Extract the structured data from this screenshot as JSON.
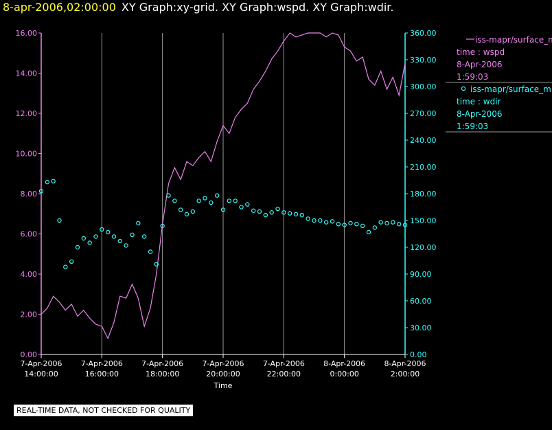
{
  "header": {
    "datetime": "8-apr-2006,02:00:00",
    "title": "XY Graph:xy-grid.  XY Graph:wspd.  XY Graph:wdir."
  },
  "notice": "REAL-TIME DATA, NOT CHECKED FOR QUALITY",
  "colors": {
    "background": "#000000",
    "wspd": "#ee82ee",
    "wdir": "#33ffff",
    "grid": "#9a9a9a",
    "axis_text": "#ffffff"
  },
  "legend": [
    {
      "series": "wspd",
      "symbol": "line",
      "name": "iss-mapr/surface_m",
      "var": "time : wspd",
      "date": "8-Apr-2006",
      "time": "1:59:03"
    },
    {
      "series": "wdir",
      "symbol": "circle",
      "name": "iss-mapr/surface_m",
      "var": "time : wdir",
      "date": "8-Apr-2006",
      "time": "1:59:03"
    }
  ],
  "chart_data": {
    "type": "line",
    "xlabel": "Time",
    "x_range_hours": [
      14,
      26
    ],
    "x_ticks": [
      {
        "hour": 14,
        "date": "7-Apr-2006",
        "time": "14:00:00"
      },
      {
        "hour": 16,
        "date": "7-Apr-2006",
        "time": "16:00:00"
      },
      {
        "hour": 18,
        "date": "7-Apr-2006",
        "time": "18:00:00"
      },
      {
        "hour": 20,
        "date": "7-Apr-2006",
        "time": "20:00:00"
      },
      {
        "hour": 22,
        "date": "7-Apr-2006",
        "time": "22:00:00"
      },
      {
        "hour": 24,
        "date": "8-Apr-2006",
        "time": "0:00:00"
      },
      {
        "hour": 26,
        "date": "8-Apr-2006",
        "time": "2:00:00"
      }
    ],
    "left_axis": {
      "series": "wspd",
      "range": [
        0,
        16
      ],
      "ticks": [
        "0.00",
        "2.00",
        "4.00",
        "6.00",
        "8.00",
        "10.00",
        "12.00",
        "14.00",
        "16.00"
      ]
    },
    "right_axis": {
      "series": "wdir",
      "range": [
        0,
        360
      ],
      "ticks": [
        "0.00",
        "30.00",
        "60.00",
        "90.00",
        "120.00",
        "150.00",
        "180.00",
        "210.00",
        "240.00",
        "270.00",
        "300.00",
        "330.00",
        "360.00"
      ]
    },
    "grid": "vertical lines at x ticks",
    "series": [
      {
        "key": "wspd",
        "style": "line",
        "axis": "left",
        "x": [
          14.0,
          14.2,
          14.4,
          14.6,
          14.8,
          15.0,
          15.2,
          15.4,
          15.6,
          15.8,
          16.0,
          16.2,
          16.4,
          16.6,
          16.8,
          17.0,
          17.2,
          17.4,
          17.6,
          17.8,
          18.0,
          18.2,
          18.4,
          18.6,
          18.8,
          19.0,
          19.2,
          19.4,
          19.6,
          19.8,
          20.0,
          20.2,
          20.4,
          20.6,
          20.8,
          21.0,
          21.2,
          21.4,
          21.6,
          21.8,
          22.0,
          22.2,
          22.4,
          22.6,
          22.8,
          23.0,
          23.2,
          23.4,
          23.6,
          23.8,
          24.0,
          24.2,
          24.4,
          24.6,
          24.8,
          25.0,
          25.2,
          25.4,
          25.6,
          25.8,
          26.0
        ],
        "y": [
          2.0,
          2.3,
          2.9,
          2.6,
          2.2,
          2.5,
          1.9,
          2.2,
          1.8,
          1.5,
          1.4,
          0.8,
          1.6,
          2.9,
          2.8,
          3.5,
          2.8,
          1.4,
          2.3,
          4.0,
          6.5,
          8.5,
          9.3,
          8.7,
          9.6,
          9.4,
          9.8,
          10.1,
          9.6,
          10.6,
          11.4,
          11.0,
          11.8,
          12.2,
          12.5,
          13.2,
          13.6,
          14.1,
          14.7,
          15.1,
          15.6,
          16.0,
          15.8,
          15.9,
          16.0,
          16.0,
          16.0,
          15.8,
          16.0,
          15.9,
          15.3,
          15.1,
          14.6,
          14.8,
          13.7,
          13.4,
          14.1,
          13.2,
          13.8,
          12.9,
          14.5
        ]
      },
      {
        "key": "wdir",
        "style": "markers",
        "axis": "right",
        "x": [
          14.0,
          14.2,
          14.4,
          14.6,
          14.8,
          15.0,
          15.2,
          15.4,
          15.6,
          15.8,
          16.0,
          16.2,
          16.4,
          16.6,
          16.8,
          17.0,
          17.2,
          17.4,
          17.6,
          17.8,
          18.0,
          18.2,
          18.4,
          18.6,
          18.8,
          19.0,
          19.2,
          19.4,
          19.6,
          19.8,
          20.0,
          20.2,
          20.4,
          20.6,
          20.8,
          21.0,
          21.2,
          21.4,
          21.6,
          21.8,
          22.0,
          22.2,
          22.4,
          22.6,
          22.8,
          23.0,
          23.2,
          23.4,
          23.6,
          23.8,
          24.0,
          24.2,
          24.4,
          24.6,
          24.8,
          25.0,
          25.2,
          25.4,
          25.6,
          25.8,
          26.0
        ],
        "y": [
          183,
          193,
          194,
          150,
          98,
          104,
          120,
          130,
          125,
          132,
          140,
          137,
          132,
          127,
          122,
          134,
          147,
          132,
          115,
          101,
          144,
          178,
          172,
          162,
          157,
          160,
          172,
          175,
          170,
          178,
          162,
          172,
          172,
          165,
          168,
          161,
          160,
          156,
          159,
          163,
          159,
          158,
          157,
          156,
          152,
          150,
          150,
          148,
          149,
          146,
          145,
          147,
          146,
          144,
          137,
          142,
          148,
          147,
          148,
          146,
          145
        ]
      }
    ]
  }
}
